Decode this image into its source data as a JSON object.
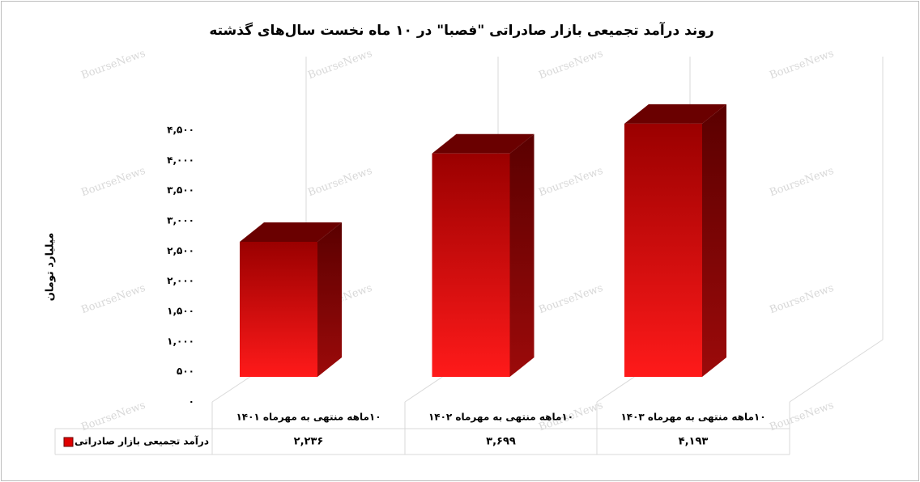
{
  "chart_data": {
    "type": "bar3d",
    "title": "روند درآمد تجمیعی بازار صادراتی \"فصبا\" در ۱۰ ماه نخست سال‌های گذشته",
    "y_label": "میلیارد تومان",
    "watermark": "BourseNews",
    "categories": [
      "۱۰ماهه منتهی به مهرماه ۱۴۰۱",
      "۱۰ماهه منتهی به مهرماه ۱۴۰۲",
      "۱۰ماهه منتهی به مهرماه ۱۴۰۳"
    ],
    "series": [
      {
        "name": "درآمد تجمیعی بازار صادراتی",
        "color": "#e00000",
        "values": [
          2236,
          3699,
          4193
        ],
        "value_labels": [
          "۲,۲۳۶",
          "۳,۶۹۹",
          "۴,۱۹۳"
        ]
      }
    ],
    "ylim": [
      0,
      4500
    ],
    "yticks": [
      {
        "value": 0,
        "label": "۰"
      },
      {
        "value": 500,
        "label": "۵۰۰"
      },
      {
        "value": 1000,
        "label": "۱,۰۰۰"
      },
      {
        "value": 1500,
        "label": "۱,۵۰۰"
      },
      {
        "value": 2000,
        "label": "۲,۰۰۰"
      },
      {
        "value": 2500,
        "label": "۲,۵۰۰"
      },
      {
        "value": 3000,
        "label": "۳,۰۰۰"
      },
      {
        "value": 3500,
        "label": "۳,۵۰۰"
      },
      {
        "value": 4000,
        "label": "۴,۰۰۰"
      },
      {
        "value": 4500,
        "label": "۴,۵۰۰"
      }
    ]
  }
}
